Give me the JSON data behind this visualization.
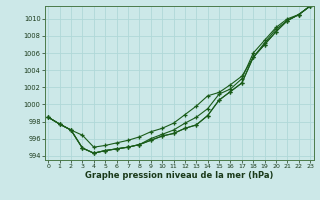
{
  "x": [
    0,
    1,
    2,
    3,
    4,
    5,
    6,
    7,
    8,
    9,
    10,
    11,
    12,
    13,
    14,
    15,
    16,
    17,
    18,
    19,
    20,
    21,
    22,
    23
  ],
  "line1": [
    998.5,
    997.7,
    997.0,
    994.9,
    994.3,
    994.6,
    994.8,
    995.0,
    995.3,
    995.8,
    996.3,
    996.6,
    997.2,
    997.6,
    998.7,
    1000.5,
    1001.5,
    1002.5,
    1005.5,
    1007.0,
    1008.5,
    1009.8,
    1010.5,
    1011.5
  ],
  "line2": [
    998.5,
    997.7,
    997.0,
    996.4,
    995.0,
    995.2,
    995.5,
    995.8,
    996.2,
    996.8,
    997.2,
    997.8,
    998.8,
    999.8,
    1001.0,
    1001.4,
    1002.3,
    1003.3,
    1005.5,
    1007.2,
    1008.8,
    1009.8,
    1010.5,
    1011.5
  ],
  "line3": [
    998.5,
    997.7,
    997.0,
    994.9,
    994.3,
    994.6,
    994.8,
    995.0,
    995.3,
    996.0,
    996.5,
    997.0,
    997.8,
    998.5,
    999.5,
    1001.2,
    1001.8,
    1003.0,
    1006.0,
    1007.5,
    1009.0,
    1010.0,
    1010.5,
    1011.5
  ],
  "line4": [
    998.5,
    997.7,
    997.0,
    994.9,
    994.3,
    994.6,
    994.8,
    995.0,
    995.3,
    995.8,
    996.3,
    996.6,
    997.2,
    997.6,
    998.7,
    1000.5,
    1001.5,
    1002.5,
    1005.5,
    1007.0,
    1008.5,
    1009.8,
    1010.5,
    1011.5
  ],
  "bg_color": "#cce8e8",
  "grid_color": "#b0d8d8",
  "line_color": "#1a5c1a",
  "xlabel": "Graphe pression niveau de la mer (hPa)",
  "ylim": [
    993.5,
    1011.5
  ],
  "yticks": [
    994,
    996,
    998,
    1000,
    1002,
    1004,
    1006,
    1008,
    1010
  ],
  "xticks": [
    0,
    1,
    2,
    3,
    4,
    5,
    6,
    7,
    8,
    9,
    10,
    11,
    12,
    13,
    14,
    15,
    16,
    17,
    18,
    19,
    20,
    21,
    22,
    23
  ]
}
